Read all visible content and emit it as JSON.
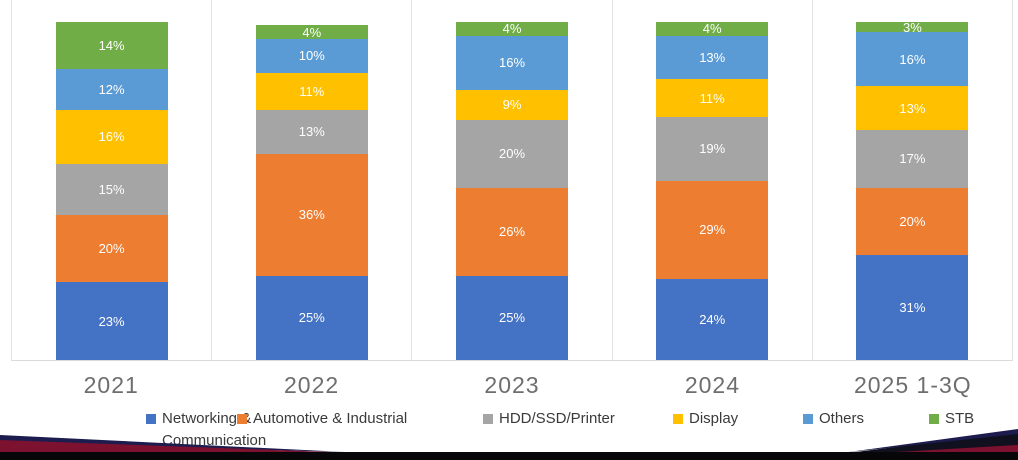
{
  "chart_data": {
    "type": "bar",
    "stacked": true,
    "percent_unit": "%",
    "title": "",
    "xlabel": "",
    "ylabel": "",
    "ylim": [
      0,
      100
    ],
    "grid": false,
    "legend_position": "bottom",
    "value_labels": "inside-white",
    "categories": [
      "2021",
      "2022",
      "2023",
      "2024",
      "2025 1-3Q"
    ],
    "series": [
      {
        "name": "Networking & Communication",
        "color": "#4472C4",
        "values": [
          23,
          25,
          25,
          24,
          31
        ]
      },
      {
        "name": "Automotive & Industrial",
        "color": "#ED7D31",
        "values": [
          20,
          36,
          26,
          29,
          20
        ]
      },
      {
        "name": "HDD/SSD/Printer",
        "color": "#A5A5A5",
        "values": [
          15,
          13,
          20,
          19,
          17
        ]
      },
      {
        "name": "Display",
        "color": "#FFC000",
        "values": [
          16,
          11,
          9,
          11,
          13
        ]
      },
      {
        "name": "Others",
        "color": "#5B9BD5",
        "values": [
          12,
          10,
          16,
          13,
          16
        ]
      },
      {
        "name": "STB",
        "color": "#70AD47",
        "values": [
          14,
          4,
          4,
          4,
          3
        ]
      }
    ]
  },
  "decor": {
    "bottom_bar_color": "#070709",
    "ribbon_maroon": "#7d1130",
    "ribbon_navy": "#1c1c4e",
    "ribbon_dark": "#10101f"
  }
}
